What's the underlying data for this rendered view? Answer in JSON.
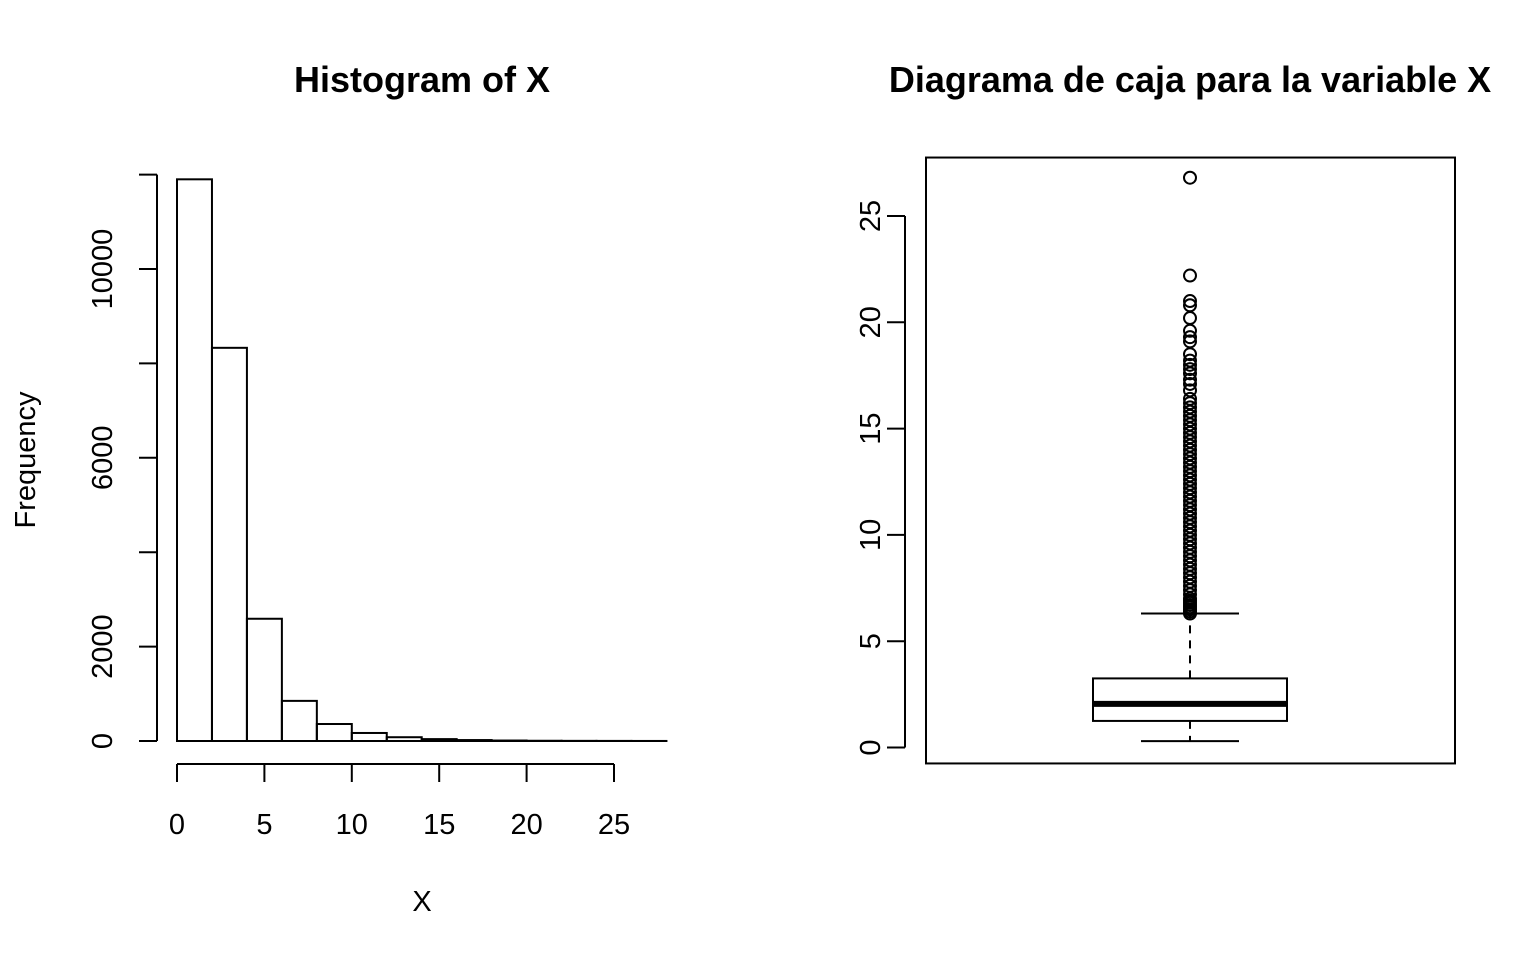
{
  "chart_data": [
    {
      "type": "bar",
      "title": "Histogram of X",
      "xlabel": "X",
      "ylabel": "Frequency",
      "bins": [
        [
          0,
          2
        ],
        [
          2,
          4
        ],
        [
          4,
          6
        ],
        [
          6,
          8
        ],
        [
          8,
          10
        ],
        [
          10,
          12
        ],
        [
          12,
          14
        ],
        [
          14,
          16
        ],
        [
          16,
          18
        ],
        [
          18,
          20
        ],
        [
          20,
          22
        ],
        [
          22,
          24
        ],
        [
          24,
          26
        ],
        [
          26,
          28
        ]
      ],
      "values": [
        11900,
        8330,
        2590,
        850,
        360,
        170,
        80,
        40,
        20,
        10,
        5,
        3,
        2,
        1
      ],
      "xticks": [
        0,
        5,
        10,
        15,
        20,
        25
      ],
      "xtick_labels": [
        "0",
        "5",
        "10",
        "15",
        "20",
        "25"
      ],
      "yticks": [
        0,
        2000,
        4000,
        6000,
        8000,
        10000,
        12000
      ],
      "ytick_labels": [
        "0",
        "2000",
        "",
        "6000",
        "",
        "10000",
        ""
      ],
      "xlim": [
        0,
        28
      ],
      "ylim": [
        0,
        12000
      ]
    },
    {
      "type": "boxplot",
      "title": "Diagrama de caja para la variable X",
      "ylabel": "",
      "yticks": [
        0,
        5,
        10,
        15,
        20,
        25
      ],
      "ytick_labels": [
        "0",
        "5",
        "10",
        "15",
        "20",
        "25"
      ],
      "ylim": [
        -0.75,
        27.75
      ],
      "stats": {
        "min": 0.3,
        "q1": 1.25,
        "median": 2.05,
        "q3": 3.25,
        "whisker_high": 6.3
      },
      "outliers": [
        6.3,
        6.4,
        6.5,
        6.6,
        6.7,
        6.8,
        6.9,
        7.0,
        7.2,
        7.4,
        7.6,
        7.8,
        8.0,
        8.2,
        8.4,
        8.6,
        8.8,
        9.0,
        9.2,
        9.4,
        9.6,
        9.8,
        10.0,
        10.2,
        10.4,
        10.6,
        10.8,
        11.0,
        11.2,
        11.4,
        11.6,
        11.8,
        12.0,
        12.2,
        12.4,
        12.6,
        12.8,
        13.0,
        13.2,
        13.4,
        13.6,
        13.8,
        14.0,
        14.2,
        14.4,
        14.6,
        14.8,
        15.0,
        15.2,
        15.4,
        15.6,
        15.8,
        16.0,
        16.2,
        16.4,
        16.8,
        17.1,
        17.3,
        17.6,
        17.8,
        18.0,
        18.2,
        18.5,
        19.1,
        19.3,
        19.6,
        20.2,
        20.8,
        21.0,
        22.2,
        26.8
      ]
    }
  ]
}
